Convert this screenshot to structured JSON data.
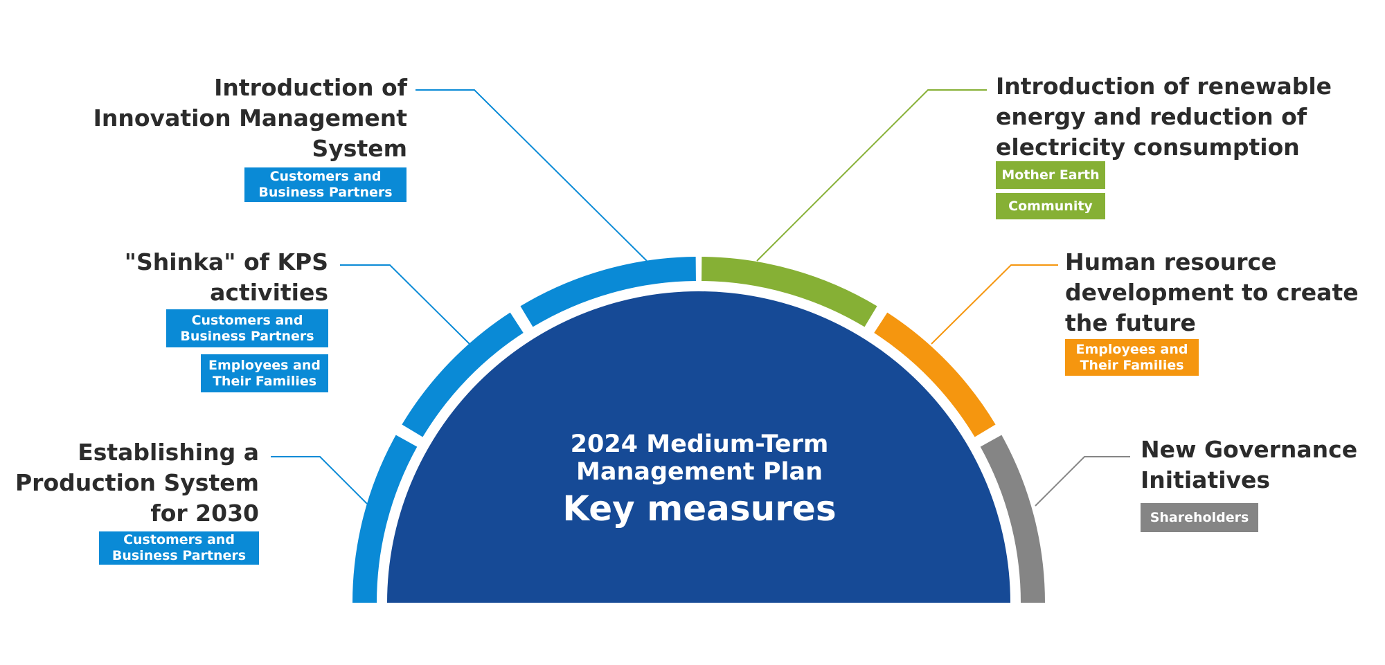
{
  "colors": {
    "blue": "#0A8AD6",
    "green": "#86B035",
    "orange": "#F5960F",
    "gray": "#858585",
    "navy": "#164A96",
    "text": "#2B2B2B"
  },
  "center": {
    "line1": "2024 Medium-Term",
    "line2": "Management Plan",
    "line3": "Key measures"
  },
  "measures": [
    {
      "id": "innovation",
      "title_lines": [
        "Introduction of",
        "Innovation Management",
        "System"
      ],
      "color": "blue",
      "tags": [
        {
          "lines": [
            "Customers and",
            "Business Partners"
          ],
          "color": "blue"
        }
      ]
    },
    {
      "id": "shinka",
      "title_lines": [
        "\"Shinka\" of KPS",
        "activities"
      ],
      "color": "blue",
      "tags": [
        {
          "lines": [
            "Customers and",
            "Business Partners"
          ],
          "color": "blue"
        },
        {
          "lines": [
            "Employees and",
            "Their Families"
          ],
          "color": "blue"
        }
      ]
    },
    {
      "id": "production",
      "title_lines": [
        "Establishing a",
        "Production System",
        "for 2030"
      ],
      "color": "blue",
      "tags": [
        {
          "lines": [
            "Customers and",
            "Business Partners"
          ],
          "color": "blue"
        }
      ]
    },
    {
      "id": "renewable",
      "title_lines": [
        "Introduction of renewable",
        "energy and reduction of",
        "electricity consumption"
      ],
      "color": "green",
      "tags": [
        {
          "lines": [
            "Mother Earth"
          ],
          "color": "green"
        },
        {
          "lines": [
            "Community"
          ],
          "color": "green"
        }
      ]
    },
    {
      "id": "human",
      "title_lines": [
        "Human resource",
        "development to create",
        "the future"
      ],
      "color": "orange",
      "tags": [
        {
          "lines": [
            "Employees and",
            "Their Families"
          ],
          "color": "orange"
        }
      ]
    },
    {
      "id": "governance",
      "title_lines": [
        "New Governance",
        "Initiatives"
      ],
      "color": "gray",
      "tags": [
        {
          "lines": [
            "Shareholders"
          ],
          "color": "gray"
        }
      ]
    }
  ]
}
